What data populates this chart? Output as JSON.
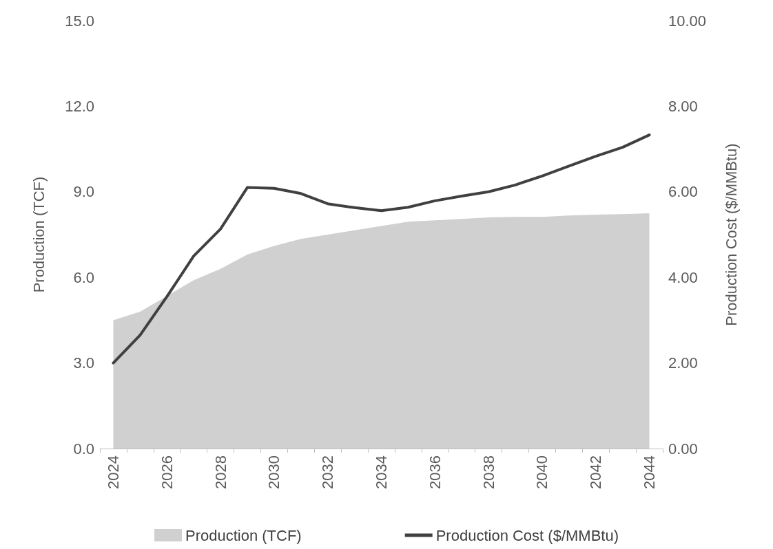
{
  "chart_data": {
    "type": "area",
    "categories": [
      "2024",
      null,
      "2026",
      null,
      "2028",
      null,
      "2030",
      null,
      "2032",
      null,
      "2034",
      null,
      "2036",
      null,
      "2038",
      null,
      "2040",
      null,
      "2042",
      null,
      "2044"
    ],
    "ylabel": "Production (TCF)",
    "y2label": "Production Cost ($/MMBtu)",
    "ylim": [
      0,
      15
    ],
    "yticks": [
      {
        "value": 0,
        "label": "0.0"
      },
      {
        "value": 3,
        "label": "3.0"
      },
      {
        "value": 6,
        "label": "6.0"
      },
      {
        "value": 9,
        "label": "9.0"
      },
      {
        "value": 12,
        "label": "12.0"
      },
      {
        "value": 15,
        "label": "15.0"
      }
    ],
    "y2lim": [
      0,
      10
    ],
    "y2ticks": [
      {
        "value": 0,
        "label": "0.00"
      },
      {
        "value": 2,
        "label": "2.00"
      },
      {
        "value": 4,
        "label": "4.00"
      },
      {
        "value": 6,
        "label": "6.00"
      },
      {
        "value": 8,
        "label": "8.00"
      },
      {
        "value": 10,
        "label": "10.00"
      }
    ],
    "series": [
      {
        "name": "Production (TCF)",
        "type": "area",
        "color": "#d0d0d0",
        "values": [
          4.5,
          4.8,
          5.35,
          5.9,
          6.3,
          6.8,
          7.1,
          7.35,
          7.5,
          7.65,
          7.8,
          7.95,
          8.0,
          8.05,
          8.1,
          8.12,
          8.12,
          8.17,
          8.2,
          8.22,
          8.25
        ]
      },
      {
        "name": "Production Cost ($/MMBtu)",
        "type": "line",
        "axis": "y2",
        "color": "#404040",
        "values": [
          2.0,
          2.65,
          3.55,
          4.5,
          5.13,
          6.1,
          6.08,
          5.96,
          5.72,
          5.63,
          5.56,
          5.64,
          5.79,
          5.9,
          6.0,
          6.16,
          6.37,
          6.6,
          6.83,
          7.04,
          7.33
        ]
      }
    ],
    "grid": false,
    "legend": "bottom",
    "marker": "none",
    "line_style": "solid"
  }
}
